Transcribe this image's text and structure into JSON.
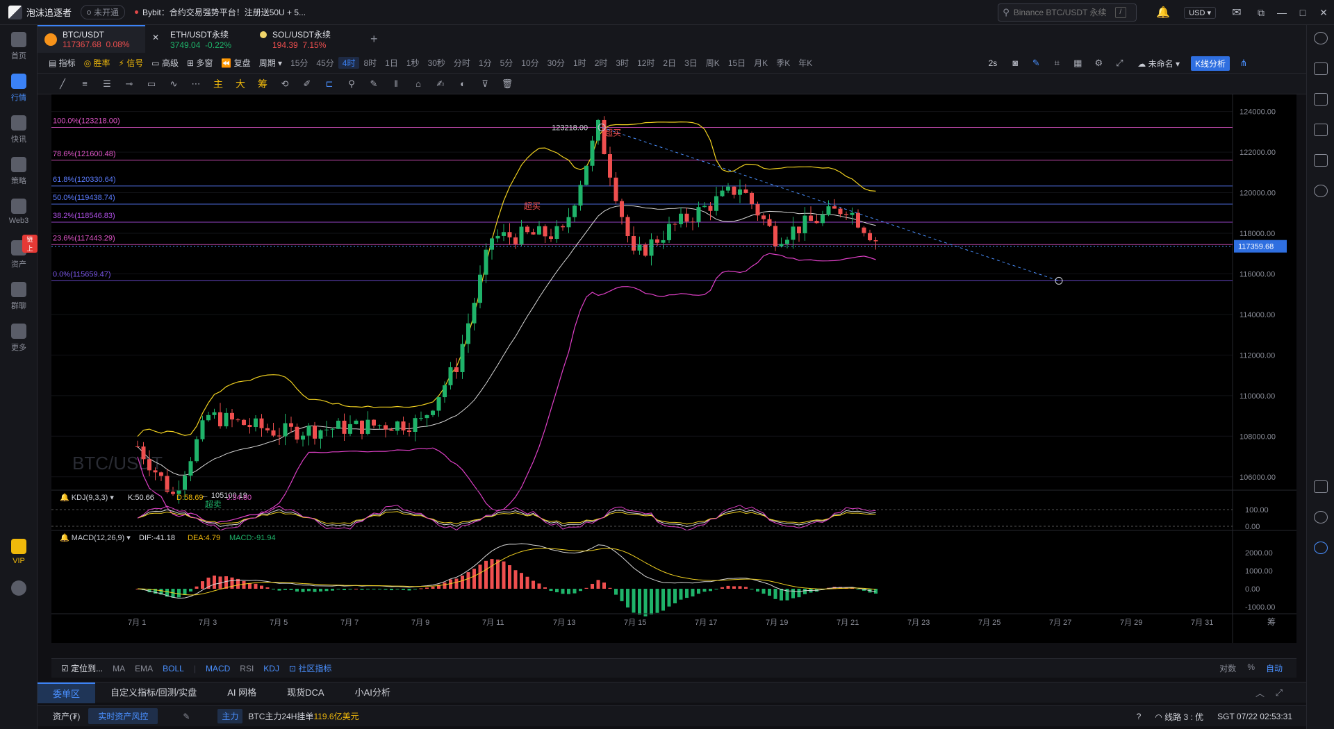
{
  "app": {
    "name": "泡沫追逐者",
    "status_tag": "未开通",
    "ticker": "Bybit：合约交易强势平台！注册送50U + 5..."
  },
  "search": {
    "placeholder": "Binance BTC/USDT 永续",
    "shortcut": "/"
  },
  "currency": "USD",
  "left_nav": [
    {
      "label": "首页",
      "icon": "home-icon"
    },
    {
      "label": "行情",
      "icon": "chart-bar-icon",
      "active": true
    },
    {
      "label": "快讯",
      "icon": "news-icon"
    },
    {
      "label": "策略",
      "icon": "robot-icon"
    },
    {
      "label": "Web3",
      "icon": "web3-icon"
    },
    {
      "label": "资产",
      "icon": "wallet-icon",
      "badge": "链上"
    },
    {
      "label": "群聊",
      "icon": "chat-icon"
    },
    {
      "label": "更多",
      "icon": "grid-icon"
    }
  ],
  "vip_label": "VIP",
  "tabs": [
    {
      "name": "BTC/USDT",
      "price": "117367.68",
      "change": "0.08%",
      "color": "#f7931a",
      "dir": "down"
    },
    {
      "name": "ETH/USDT永续",
      "price": "3749.04",
      "change": "-0.22%",
      "color": "#627eea",
      "dir": "up"
    },
    {
      "name": "SOL/USDT永续",
      "price": "194.39",
      "change": "7.15%",
      "color": "#f0b90b",
      "dir": "down"
    }
  ],
  "toolbar1": {
    "items": [
      "指标",
      "胜率",
      "信号",
      "高级",
      "多窗",
      "复盘",
      "周期"
    ],
    "periods": [
      "15分",
      "45分",
      "4时",
      "8时",
      "1日",
      "1秒",
      "30秒",
      "分时",
      "1分",
      "5分",
      "10分",
      "30分",
      "1时",
      "2时",
      "3时",
      "12时",
      "2日",
      "3日",
      "周K",
      "15日",
      "月K",
      "季K",
      "年K"
    ],
    "selected_period": "4时",
    "refresh": "2s",
    "layout_name": "未命名",
    "kline_btn": "K线分析"
  },
  "toolbar2": {
    "labels": [
      "主",
      "大",
      "筹"
    ]
  },
  "chart": {
    "watermark": "BTC/USDT",
    "last_price": "117359.68",
    "fib_levels": [
      {
        "label": "100.0%(123218.00)",
        "value": 123218.0,
        "color": "#e055c8"
      },
      {
        "label": "78.6%(121600.48)",
        "value": 121600.48,
        "color": "#e055c8"
      },
      {
        "label": "61.8%(120330.64)",
        "value": 120330.64,
        "color": "#5b7cff"
      },
      {
        "label": "50.0%(119438.74)",
        "value": 119438.74,
        "color": "#5b7cff"
      },
      {
        "label": "38.2%(118546.83)",
        "value": 118546.83,
        "color": "#b050e8"
      },
      {
        "label": "23.6%(117443.29)",
        "value": 117443.29,
        "color": "#e055c8"
      },
      {
        "label": "0.0%(115659.47)",
        "value": 115659.47,
        "color": "#7a55e8"
      }
    ],
    "high_label": "123218.00",
    "low_label": "← 105100.19",
    "overbought": "超买",
    "oversold": "超卖",
    "y_ticks": [
      "124000.00",
      "122000.00",
      "120000.00",
      "118000.00",
      "116000.00",
      "114000.00",
      "112000.00",
      "110000.00",
      "108000.00",
      "106000.00"
    ],
    "x_ticks": [
      "7月 1",
      "7月 3",
      "7月 5",
      "7月 7",
      "7月 9",
      "7月 11",
      "7月 13",
      "7月 15",
      "7月 17",
      "7月 19",
      "7月 21",
      "7月 23",
      "7月 25",
      "7月 27",
      "7月 29",
      "7月 31"
    ],
    "kdj": {
      "title": "KDJ(9,3,3)",
      "k": "K:50.66",
      "d": "D:58.69",
      "j": "J:34.60",
      "ticks": [
        "100.00",
        "0.00"
      ]
    },
    "macd": {
      "title": "MACD(12,26,9)",
      "dif": "DIF:-41.18",
      "dea": "DEA:4.79",
      "macd": "MACD:-91.94",
      "ticks": [
        "2000.00",
        "1000.00",
        "0.00",
        "-1000.00"
      ]
    },
    "right_label": "筹"
  },
  "chart_data": {
    "type": "candlestick",
    "title": "BTC/USDT",
    "interval": "4时",
    "x_range": [
      "7月 1",
      "7月 31"
    ],
    "ylim": [
      105000,
      124500
    ],
    "price_key_points": [
      {
        "x": "7月 1",
        "y": 107500
      },
      {
        "x": "7月 2",
        "y": 105100.19
      },
      {
        "x": "7月 3",
        "y": 109000
      },
      {
        "x": "7月 5",
        "y": 108200
      },
      {
        "x": "7月 9",
        "y": 108700
      },
      {
        "x": "7月 10",
        "y": 111500
      },
      {
        "x": "7月 11",
        "y": 117800
      },
      {
        "x": "7月 13",
        "y": 118000
      },
      {
        "x": "7月 14",
        "y": 123218.0
      },
      {
        "x": "7月 15",
        "y": 116800
      },
      {
        "x": "7月 16",
        "y": 118200
      },
      {
        "x": "7月 18",
        "y": 120300
      },
      {
        "x": "7月 19",
        "y": 117800
      },
      {
        "x": "7月 21",
        "y": 119300
      },
      {
        "x": "7月 22",
        "y": 117359.68
      }
    ],
    "fibonacci": [
      123218.0,
      121600.48,
      120330.64,
      119438.74,
      118546.83,
      117443.29,
      115659.47
    ]
  },
  "bottom_controls": {
    "locate": "定位到...",
    "indicators": [
      "MA",
      "EMA",
      "BOLL",
      "MACD",
      "RSI",
      "KDJ"
    ],
    "selected": [
      "BOLL",
      "MACD",
      "KDJ"
    ],
    "community": "社区指标",
    "right": [
      "对数",
      "%",
      "自动"
    ]
  },
  "bottom_tabs": [
    "委单区",
    "自定义指标/回测/实盘",
    "AI 网格",
    "现货DCA",
    "小AI分析"
  ],
  "status": {
    "asset": "资产(₮)",
    "risk": "实时资产风控",
    "main_tag": "主力",
    "main_text": "BTC主力24H挂单",
    "main_amount": "119.6亿美元",
    "line": "线路 3 : 优",
    "time": "SGT  07/22 02:53:31"
  }
}
